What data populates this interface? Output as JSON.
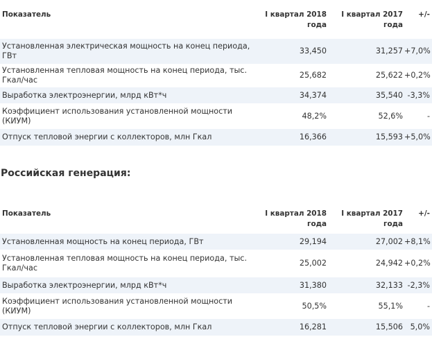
{
  "table1": {
    "headers": [
      "Показатель",
      "I квартал 2018 года",
      "I квартал 2017 года",
      "+/-"
    ],
    "rows": [
      {
        "label": "Установленная электрическая мощность на конец периода, ГВт",
        "q2018": "33,450",
        "q2017": "31,257",
        "change": "+7,0%"
      },
      {
        "label": "Установленная тепловая мощность на конец периода, тыс. Гкал/час",
        "q2018": "25,682",
        "q2017": "25,622",
        "change": "+0,2%"
      },
      {
        "label": "Выработка электроэнергии, млрд кВт*ч",
        "q2018": "34,374",
        "q2017": "35,540",
        "change": "-3,3%"
      },
      {
        "label": "Коэффициент использования установленной мощности (КИУМ)",
        "q2018": "48,2%",
        "q2017": "52,6%",
        "change": "-"
      },
      {
        "label": "Отпуск тепловой энергии с коллекторов, млн Гкал",
        "q2018": "16,366",
        "q2017": "15,593",
        "change": "+5,0%"
      }
    ]
  },
  "section_title": "Российская генерация:",
  "table2": {
    "headers": [
      "Показатель",
      "I квартал 2018 года",
      "I квартал 2017 года",
      "+/-"
    ],
    "rows": [
      {
        "label": "Установленная мощность на конец периода, ГВт",
        "q2018": "29,194",
        "q2017": "27,002",
        "change": "+8,1%"
      },
      {
        "label": "Установленная тепловая мощность на конец периода, тыс. Гкал/час",
        "q2018": "25,002",
        "q2017": "24,942",
        "change": "+0,2%"
      },
      {
        "label": "Выработка электроэнергии, млрд кВт*ч",
        "q2018": "31,380",
        "q2017": "32,133",
        "change": "-2,3%"
      },
      {
        "label": "Коэффициент использования установленной мощности (КИУМ)",
        "q2018": "50,5%",
        "q2017": "55,1%",
        "change": "-"
      },
      {
        "label": "Отпуск тепловой энергии с коллекторов, млн Гкал",
        "q2018": "16,281",
        "q2017": "15,506",
        "change": "5,0%"
      }
    ]
  }
}
